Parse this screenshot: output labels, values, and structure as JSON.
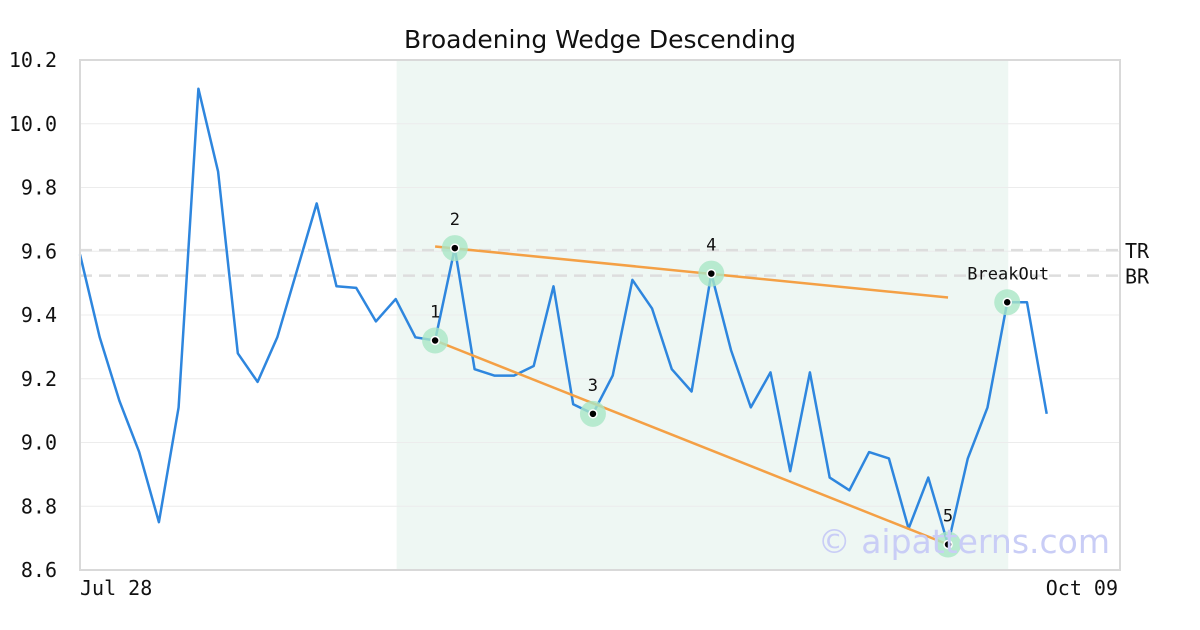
{
  "chart_data": {
    "type": "line",
    "title": "Broadening Wedge Descending",
    "xlabel": "",
    "ylabel": "",
    "x_ticks": [
      "Jul 28",
      "Oct 09"
    ],
    "ylim": [
      8.6,
      10.2
    ],
    "y_ticks": [
      "8.6",
      "8.8",
      "9.0",
      "9.2",
      "9.4",
      "9.6",
      "9.8",
      "10.0",
      "10.2"
    ],
    "grid": true,
    "series": [
      {
        "name": "",
        "color": "#2e86de",
        "values": [
          9.59,
          9.33,
          9.13,
          8.97,
          8.75,
          9.11,
          10.11,
          9.85,
          9.28,
          9.19,
          9.33,
          9.54,
          9.75,
          9.49,
          9.485,
          9.38,
          9.45,
          9.33,
          9.32,
          9.61,
          9.23,
          9.21,
          9.21,
          9.24,
          9.49,
          9.12,
          9.09,
          9.21,
          9.51,
          9.42,
          9.23,
          9.16,
          9.53,
          9.29,
          9.11,
          9.22,
          8.91,
          9.22,
          8.89,
          8.85,
          8.97,
          8.95,
          8.73,
          8.89,
          8.68,
          8.95,
          9.11,
          9.44,
          9.44,
          9.09
        ]
      }
    ],
    "pattern_region": {
      "start_index": 16,
      "end_index": 47,
      "color": "#eef7f3"
    },
    "levels": [
      {
        "label": "TR",
        "value": 9.61
      },
      {
        "label": "BR",
        "value": 9.53
      }
    ],
    "trendlines": [
      {
        "from": [
          18,
          9.615
        ],
        "to": [
          44,
          9.455
        ],
        "color": "#f4a045"
      },
      {
        "from": [
          18,
          9.32
        ],
        "to": [
          44,
          8.68
        ],
        "color": "#f4a045"
      }
    ],
    "points": [
      {
        "label": "1",
        "index": 18,
        "value": 9.32,
        "label_pos": "above"
      },
      {
        "label": "2",
        "index": 19,
        "value": 9.61,
        "label_pos": "above"
      },
      {
        "label": "3",
        "index": 26,
        "value": 9.09,
        "label_pos": "above"
      },
      {
        "label": "4",
        "index": 32,
        "value": 9.53,
        "label_pos": "above"
      },
      {
        "label": "5",
        "index": 44,
        "value": 8.68,
        "label_pos": "above"
      },
      {
        "label": "BreakOut",
        "index": 47,
        "value": 9.44,
        "label_pos": "above"
      }
    ],
    "watermark": "© aipatterns.com"
  }
}
